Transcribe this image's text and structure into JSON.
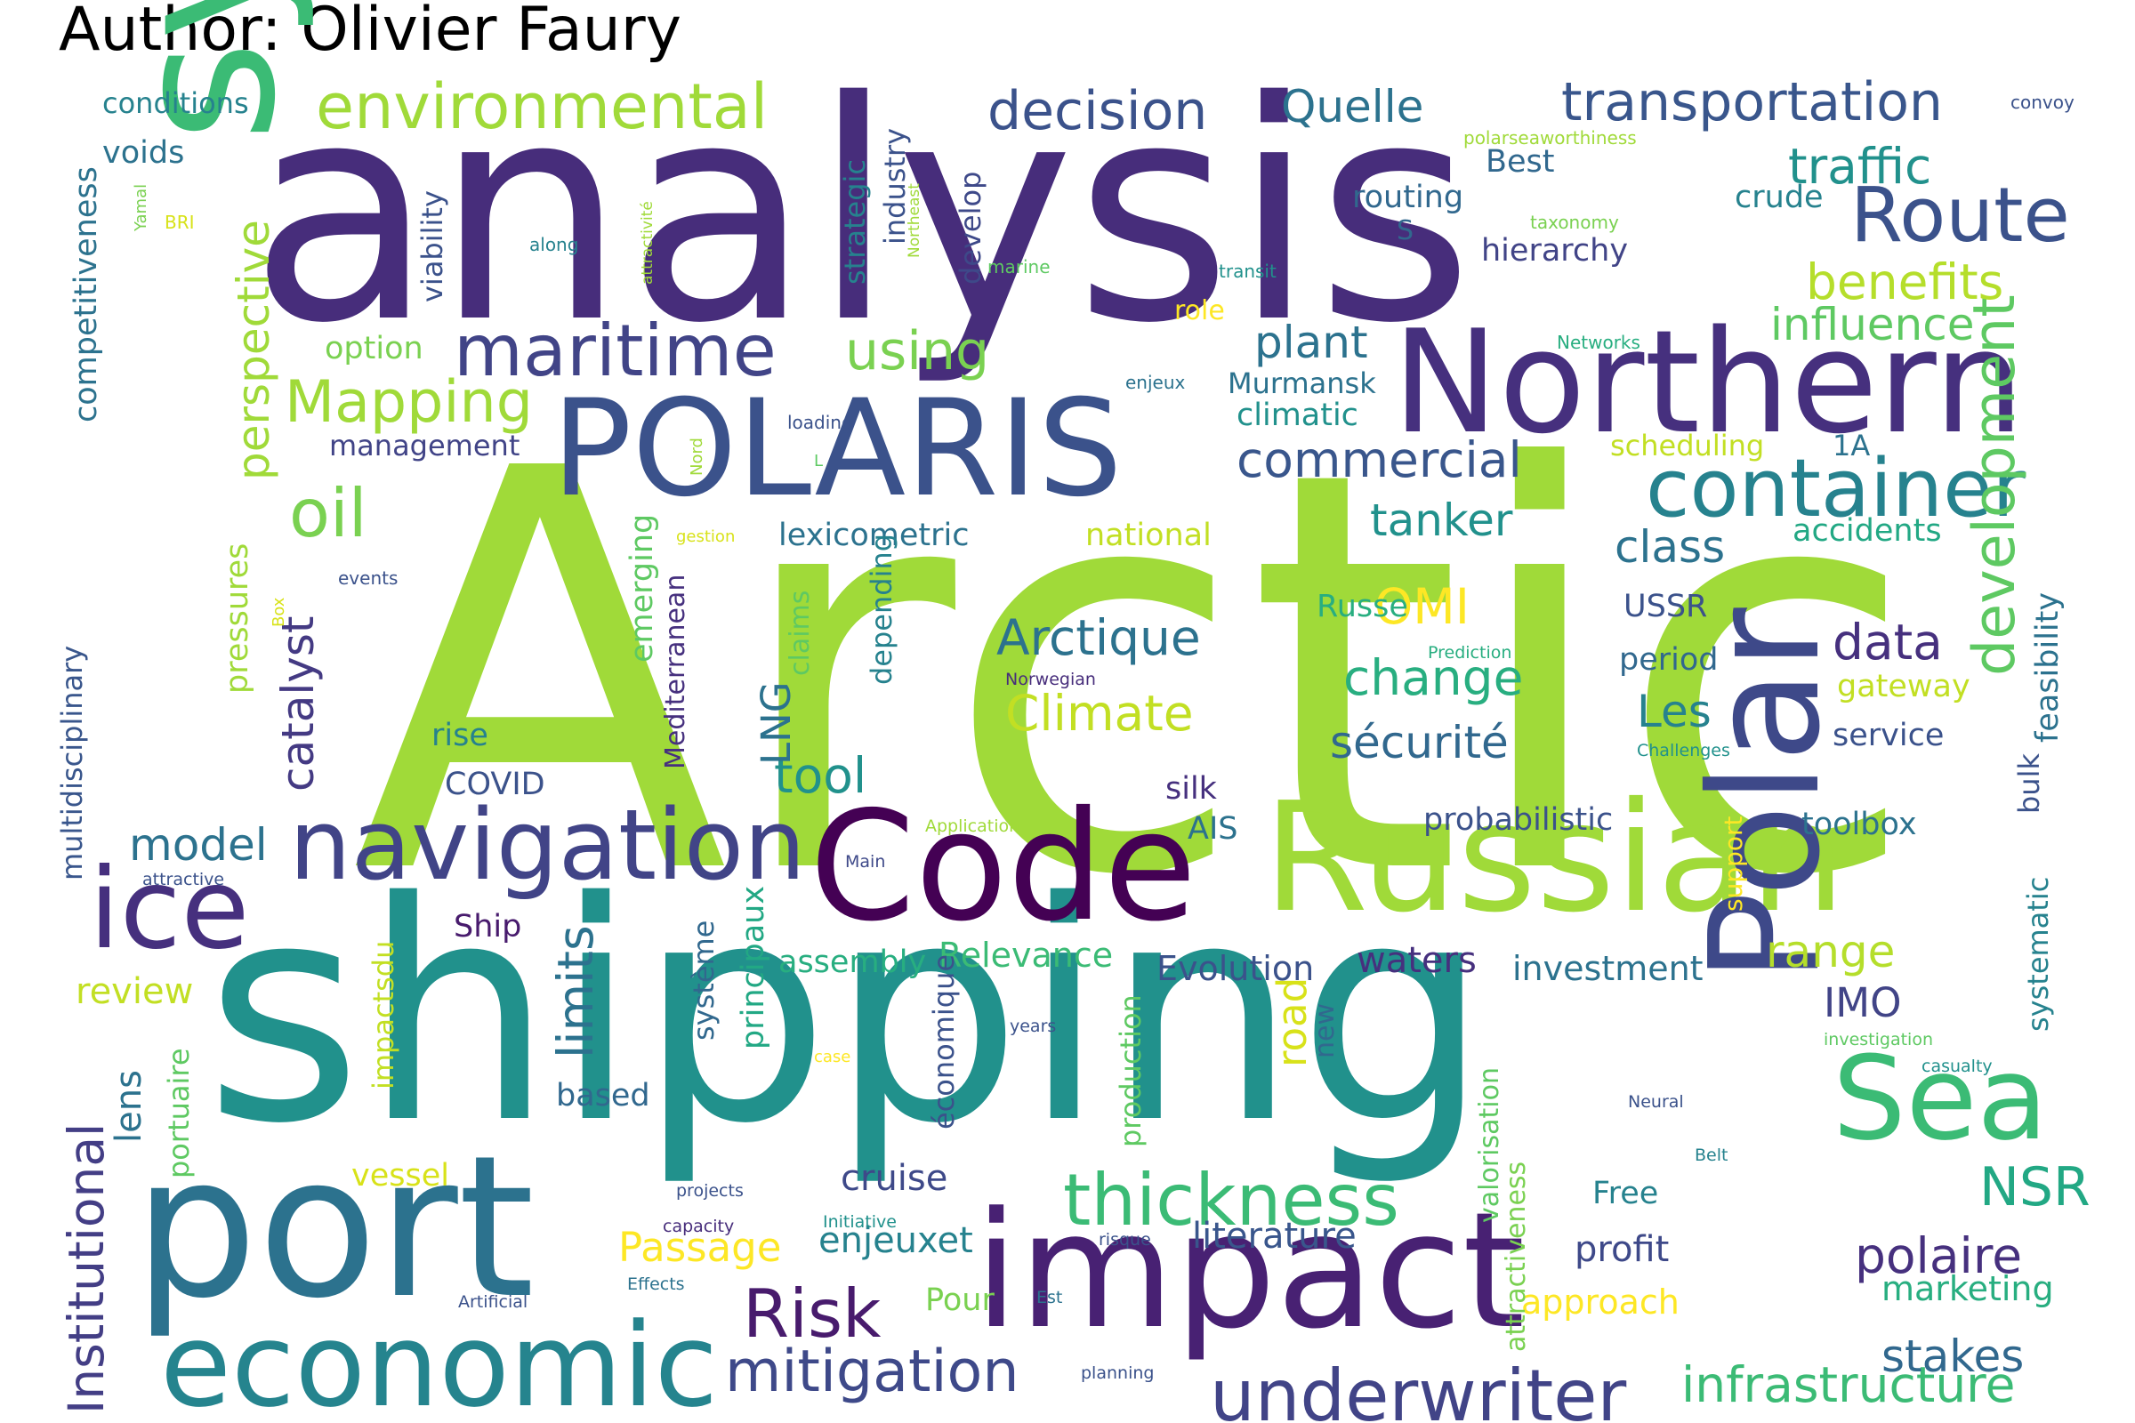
{
  "title": "Author: Olivier Faury",
  "colors": {
    "darkpurple": "#440154",
    "purple": "#472d7b",
    "indigo": "#3b528b",
    "blue": "#2c728e",
    "teal": "#21918c",
    "green": "#28ae80",
    "lime": "#5ec962",
    "yellowgreen": "#addc30",
    "yellow": "#fde725",
    "lightgreen": "#7ad151"
  },
  "words": [
    {
      "text": "analysis",
      "color": "#472d7b"
    },
    {
      "text": "Arctic",
      "color": "#a0da39"
    },
    {
      "text": "shipping",
      "color": "#21918c"
    },
    {
      "text": "system",
      "color": "#3bbb75"
    },
    {
      "text": "port",
      "color": "#2c728e"
    },
    {
      "text": "Northern",
      "color": "#46307e"
    },
    {
      "text": "POLARIS",
      "color": "#3b528b"
    },
    {
      "text": "Code",
      "color": "#440154"
    },
    {
      "text": "Russian",
      "color": "#a0da39"
    },
    {
      "text": "impact",
      "color": "#482173"
    },
    {
      "text": "economic",
      "color": "#25848e"
    },
    {
      "text": "Polar",
      "color": "#3e4989"
    },
    {
      "text": "Sea",
      "color": "#3bbb75"
    },
    {
      "text": "ice",
      "color": "#46307e"
    },
    {
      "text": "navigation",
      "color": "#414487"
    },
    {
      "text": "container",
      "color": "#26828e"
    },
    {
      "text": "Route",
      "color": "#3b528b"
    },
    {
      "text": "underwriter",
      "color": "#414487"
    },
    {
      "text": "thickness",
      "color": "#3bbb75"
    },
    {
      "text": "maritime",
      "color": "#414487"
    },
    {
      "text": "environmental",
      "color": "#a0da39"
    },
    {
      "text": "transportation",
      "color": "#39568c"
    },
    {
      "text": "decision",
      "color": "#3b528b"
    },
    {
      "text": "Mapping",
      "color": "#a0da39"
    },
    {
      "text": "oil",
      "color": "#7ad151"
    },
    {
      "text": "development",
      "color": "#5ec962"
    },
    {
      "text": "Risk",
      "color": "#481b6d"
    },
    {
      "text": "mitigation",
      "color": "#3e4989"
    },
    {
      "text": "infrastructure",
      "color": "#3bbb75"
    },
    {
      "text": "Institutional",
      "color": "#433e85"
    },
    {
      "text": "Climate",
      "color": "#c2df23"
    },
    {
      "text": "Arctique",
      "color": "#2c728e"
    },
    {
      "text": "change",
      "color": "#28ae80"
    },
    {
      "text": "sécurité",
      "color": "#31688e"
    },
    {
      "text": "commercial",
      "color": "#39568c"
    },
    {
      "text": "using",
      "color": "#7ad151"
    },
    {
      "text": "plant",
      "color": "#2c728e"
    },
    {
      "text": "Quelle",
      "color": "#2c728e"
    },
    {
      "text": "traffic",
      "color": "#21918c"
    },
    {
      "text": "benefits",
      "color": "#b5de2b"
    },
    {
      "text": "influence",
      "color": "#5ec962"
    },
    {
      "text": "perspective",
      "color": "#a0da39"
    },
    {
      "text": "catalyst",
      "color": "#443a83"
    },
    {
      "text": "limits",
      "color": "#2c728e"
    },
    {
      "text": "road",
      "color": "#d8e219"
    },
    {
      "text": "tanker",
      "color": "#21918c"
    },
    {
      "text": "class",
      "color": "#2c728e"
    },
    {
      "text": "data",
      "color": "#46307e"
    },
    {
      "text": "tool",
      "color": "#21918c"
    },
    {
      "text": "LNG",
      "color": "#2c728e"
    },
    {
      "text": "OMI",
      "color": "#fde725"
    },
    {
      "text": "Les",
      "color": "#26828e"
    },
    {
      "text": "range",
      "color": "#b5de2b"
    },
    {
      "text": "NSR",
      "color": "#22a884"
    },
    {
      "text": "polaire",
      "color": "#46307e"
    },
    {
      "text": "stakes",
      "color": "#31688e"
    },
    {
      "text": "model",
      "color": "#2c728e"
    },
    {
      "text": "Passage",
      "color": "#fde725"
    },
    {
      "text": "enjeuxet",
      "color": "#26828e"
    },
    {
      "text": "IMO",
      "color": "#414487"
    },
    {
      "text": "literature",
      "color": "#39568c"
    },
    {
      "text": "profit",
      "color": "#3e4989"
    },
    {
      "text": "cruise",
      "color": "#3e4989"
    },
    {
      "text": "review",
      "color": "#c2df23"
    },
    {
      "text": "lens",
      "color": "#2c728e"
    },
    {
      "text": "vessel",
      "color": "#d8e219"
    },
    {
      "text": "based",
      "color": "#31688e"
    },
    {
      "text": "waters",
      "color": "#46307e"
    },
    {
      "text": "investment",
      "color": "#2c728e"
    },
    {
      "text": "Evolution",
      "color": "#3b528b"
    },
    {
      "text": "Relevance",
      "color": "#3bbb75"
    },
    {
      "text": "assembly",
      "color": "#28ae80"
    },
    {
      "text": "Ship",
      "color": "#481b6d"
    },
    {
      "text": "marketing",
      "color": "#28ae80"
    },
    {
      "text": "approach",
      "color": "#fde725"
    },
    {
      "text": "Pour",
      "color": "#7ad151"
    },
    {
      "text": "Free",
      "color": "#26828e"
    },
    {
      "text": "toolbox",
      "color": "#2c728e"
    },
    {
      "text": "probabilistic",
      "color": "#3b528b"
    },
    {
      "text": "silk",
      "color": "#46307e"
    },
    {
      "text": "AIS",
      "color": "#2c728e"
    },
    {
      "text": "COVID",
      "color": "#3b528b"
    },
    {
      "text": "rise",
      "color": "#26828e"
    },
    {
      "text": "service",
      "color": "#3b528b"
    },
    {
      "text": "period",
      "color": "#31688e"
    },
    {
      "text": "gateway",
      "color": "#c2df23"
    },
    {
      "text": "USSR",
      "color": "#3b528b"
    },
    {
      "text": "Russe",
      "color": "#28ae80"
    },
    {
      "text": "lexicometric",
      "color": "#2c728e"
    },
    {
      "text": "national",
      "color": "#c2df23"
    },
    {
      "text": "accidents",
      "color": "#22a884"
    },
    {
      "text": "management",
      "color": "#414487"
    },
    {
      "text": "option",
      "color": "#7ad151"
    },
    {
      "text": "Murmansk",
      "color": "#2c728e"
    },
    {
      "text": "climatic",
      "color": "#21918c"
    },
    {
      "text": "scheduling",
      "color": "#c2df23"
    },
    {
      "text": "1A",
      "color": "#2c728e"
    },
    {
      "text": "role",
      "color": "#fde725"
    },
    {
      "text": "routing",
      "color": "#31688e"
    },
    {
      "text": "S",
      "color": "#31688e"
    },
    {
      "text": "Best",
      "color": "#31688e"
    },
    {
      "text": "crude",
      "color": "#26828e"
    },
    {
      "text": "hierarchy",
      "color": "#414487"
    },
    {
      "text": "conditions",
      "color": "#26828e"
    },
    {
      "text": "voids",
      "color": "#2c728e"
    },
    {
      "text": "competitiveness",
      "color": "#2c728e"
    },
    {
      "text": "viability",
      "color": "#3b528b"
    },
    {
      "text": "strategic",
      "color": "#26828e"
    },
    {
      "text": "industry",
      "color": "#3b528b"
    },
    {
      "text": "develop",
      "color": "#3e4989"
    },
    {
      "text": "pressures",
      "color": "#a0da39"
    },
    {
      "text": "multidisciplinary",
      "color": "#39568c"
    },
    {
      "text": "impactsdu",
      "color": "#c2df23"
    },
    {
      "text": "portuaire",
      "color": "#5ec962"
    },
    {
      "text": "système",
      "color": "#31688e"
    },
    {
      "text": "principaux",
      "color": "#22a884"
    },
    {
      "text": "économique",
      "color": "#3b528b"
    },
    {
      "text": "production",
      "color": "#5ec962"
    },
    {
      "text": "new",
      "color": "#31688e"
    },
    {
      "text": "valorisation",
      "color": "#5ec962"
    },
    {
      "text": "attractiveness",
      "color": "#7ad151"
    },
    {
      "text": "emerging",
      "color": "#5ec962"
    },
    {
      "text": "Mediterranean",
      "color": "#46307e"
    },
    {
      "text": "claims",
      "color": "#5ec962"
    },
    {
      "text": "depending",
      "color": "#26828e"
    },
    {
      "text": "feasibility",
      "color": "#2c728e"
    },
    {
      "text": "bulk",
      "color": "#3b528b"
    },
    {
      "text": "systematic",
      "color": "#26828e"
    },
    {
      "text": "support",
      "color": "#fde725"
    },
    {
      "text": "convoy",
      "color": "#3b528b"
    },
    {
      "text": "polarseaworthiness",
      "color": "#a0da39"
    },
    {
      "text": "taxonomy",
      "color": "#7ad151"
    },
    {
      "text": "transit",
      "color": "#21918c"
    },
    {
      "text": "marine",
      "color": "#5ec962"
    },
    {
      "text": "Networks",
      "color": "#28ae80"
    },
    {
      "text": "enjeux",
      "color": "#2c728e"
    },
    {
      "text": "along",
      "color": "#26828e"
    },
    {
      "text": "Yamal",
      "color": "#7ad151"
    },
    {
      "text": "BRI",
      "color": "#d8e219"
    },
    {
      "text": "attractivité",
      "color": "#a0da39"
    },
    {
      "text": "Northeast",
      "color": "#a0da39"
    },
    {
      "text": "loading",
      "color": "#3b528b"
    },
    {
      "text": "L",
      "color": "#5ec962"
    },
    {
      "text": "Nord",
      "color": "#a0da39"
    },
    {
      "text": "gestion",
      "color": "#d8e219"
    },
    {
      "text": "events",
      "color": "#3b528b"
    },
    {
      "text": "Box",
      "color": "#d8e219"
    },
    {
      "text": "Prediction",
      "color": "#28ae80"
    },
    {
      "text": "Norwegian",
      "color": "#472d7b"
    },
    {
      "text": "Challenges",
      "color": "#21918c"
    },
    {
      "text": "Application",
      "color": "#a0da39"
    },
    {
      "text": "Main",
      "color": "#3e4989"
    },
    {
      "text": "attractive",
      "color": "#3b528b"
    },
    {
      "text": "years",
      "color": "#3b528b"
    },
    {
      "text": "case",
      "color": "#fde725"
    },
    {
      "text": "investigation",
      "color": "#5ec962"
    },
    {
      "text": "casualty",
      "color": "#21918c"
    },
    {
      "text": "Neural",
      "color": "#3b528b"
    },
    {
      "text": "Belt",
      "color": "#26828e"
    },
    {
      "text": "projects",
      "color": "#3b528b"
    },
    {
      "text": "capacity",
      "color": "#472d7b"
    },
    {
      "text": "Initiative",
      "color": "#21918c"
    },
    {
      "text": "risque",
      "color": "#3b528b"
    },
    {
      "text": "Effects",
      "color": "#2c728e"
    },
    {
      "text": "Artificial",
      "color": "#3b528b"
    },
    {
      "text": "Est",
      "color": "#2c728e"
    },
    {
      "text": "planning",
      "color": "#3b528b"
    }
  ]
}
